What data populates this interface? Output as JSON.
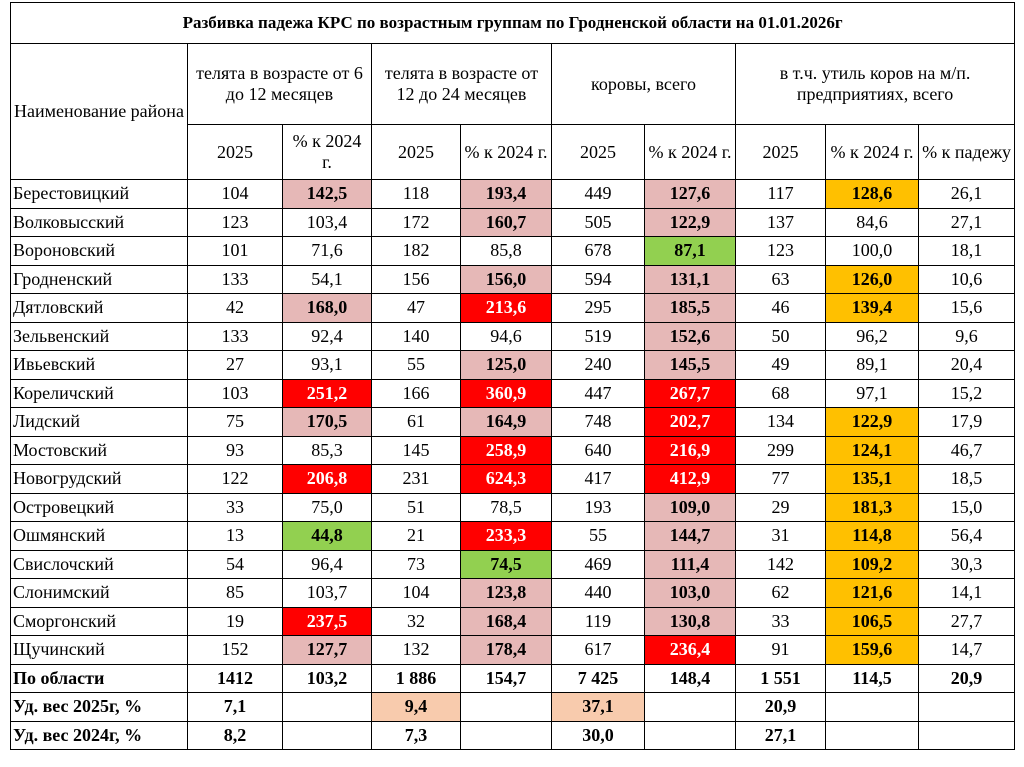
{
  "title": "Разбивка падежа КРС по возрастным группам по Гродненской области на 01.01.2026г",
  "header": {
    "name": "Наименование района",
    "groups": [
      "телята в возрасте от 6 до 12 месяцев",
      "телята в возрасте от 12 до 24 месяцев",
      "коровы, всего",
      "в т.ч. утиль коров на м/п. предприятиях, всего"
    ],
    "subcolumns": [
      "2025",
      "% к 2024 г.",
      "2025",
      "% к 2024 г.",
      "2025",
      "% к 2024 г.",
      "2025",
      "% к 2024 г.",
      "% к падежу"
    ]
  },
  "table": {
    "rows": [
      [
        "Берестовицкий",
        "104",
        "142,5",
        "118",
        "193,4",
        "449",
        "127,6",
        "117",
        "128,6",
        "26,1"
      ],
      [
        "Волковысский",
        "123",
        "103,4",
        "172",
        "160,7",
        "505",
        "122,9",
        "137",
        "84,6",
        "27,1"
      ],
      [
        "Вороновский",
        "101",
        "71,6",
        "182",
        "85,8",
        "678",
        "87,1",
        "123",
        "100,0",
        "18,1"
      ],
      [
        "Гродненский",
        "133",
        "54,1",
        "156",
        "156,0",
        "594",
        "131,1",
        "63",
        "126,0",
        "10,6"
      ],
      [
        "Дятловский",
        "42",
        "168,0",
        "47",
        "213,6",
        "295",
        "185,5",
        "46",
        "139,4",
        "15,6"
      ],
      [
        "Зельвенский",
        "133",
        "92,4",
        "140",
        "94,6",
        "519",
        "152,6",
        "50",
        "96,2",
        "9,6"
      ],
      [
        "Ивьевский",
        "27",
        "93,1",
        "55",
        "125,0",
        "240",
        "145,5",
        "49",
        "89,1",
        "20,4"
      ],
      [
        "Кореличский",
        "103",
        "251,2",
        "166",
        "360,9",
        "447",
        "267,7",
        "68",
        "97,1",
        "15,2"
      ],
      [
        "Лидский",
        "75",
        "170,5",
        "61",
        "164,9",
        "748",
        "202,7",
        "134",
        "122,9",
        "17,9"
      ],
      [
        "Мостовский",
        "93",
        "85,3",
        "145",
        "258,9",
        "640",
        "216,9",
        "299",
        "124,1",
        "46,7"
      ],
      [
        "Новогрудский",
        "122",
        "206,8",
        "231",
        "624,3",
        "417",
        "412,9",
        "77",
        "135,1",
        "18,5"
      ],
      [
        "Островецкий",
        "33",
        "75,0",
        "51",
        "78,5",
        "193",
        "109,0",
        "29",
        "181,3",
        "15,0"
      ],
      [
        "Ошмянский",
        "13",
        "44,8",
        "21",
        "233,3",
        "55",
        "144,7",
        "31",
        "114,8",
        "56,4"
      ],
      [
        "Свислочский",
        "54",
        "96,4",
        "73",
        "74,5",
        "469",
        "111,4",
        "142",
        "109,2",
        "30,3"
      ],
      [
        "Слонимский",
        "85",
        "103,7",
        "104",
        "123,8",
        "440",
        "103,0",
        "62",
        "121,6",
        "14,1"
      ],
      [
        "Сморгонский",
        "19",
        "237,5",
        "32",
        "168,4",
        "119",
        "130,8",
        "33",
        "106,5",
        "27,7"
      ],
      [
        "Щучинский",
        "152",
        "127,7",
        "132",
        "178,4",
        "617",
        "236,4",
        "91",
        "159,6",
        "14,7"
      ],
      [
        "По области",
        "1412",
        "103,2",
        "1 886",
        "154,7",
        "7 425",
        "148,4",
        "1 551",
        "114,5",
        "20,9"
      ],
      [
        "Уд. вес  2025г, %",
        "7,1",
        null,
        "9,4",
        null,
        "37,1",
        null,
        "20,9",
        null,
        null
      ],
      [
        "Уд. вес  2024г, %",
        "8,2",
        null,
        "7,3",
        null,
        "30,0",
        null,
        "27,1",
        null,
        null
      ]
    ],
    "fills": [
      [
        null,
        null,
        "#e6b8b7",
        null,
        "#e6b8b7",
        null,
        "#e6b8b7",
        null,
        "#ffc000",
        null
      ],
      [
        null,
        null,
        null,
        null,
        "#e6b8b7",
        null,
        "#e6b8b7",
        null,
        null,
        null
      ],
      [
        null,
        null,
        null,
        null,
        null,
        null,
        "#92d050",
        null,
        null,
        null
      ],
      [
        null,
        null,
        null,
        null,
        "#e6b8b7",
        null,
        "#e6b8b7",
        null,
        "#ffc000",
        null
      ],
      [
        null,
        null,
        "#e6b8b7",
        null,
        "#ff0000",
        null,
        "#e6b8b7",
        null,
        "#ffc000",
        null
      ],
      [
        null,
        null,
        null,
        null,
        null,
        null,
        "#e6b8b7",
        null,
        null,
        null
      ],
      [
        null,
        null,
        null,
        null,
        "#e6b8b7",
        null,
        "#e6b8b7",
        null,
        null,
        null
      ],
      [
        null,
        null,
        "#ff0000",
        null,
        "#ff0000",
        null,
        "#ff0000",
        null,
        null,
        null
      ],
      [
        null,
        null,
        "#e6b8b7",
        null,
        "#e6b8b7",
        null,
        "#ff0000",
        null,
        "#ffc000",
        null
      ],
      [
        null,
        null,
        null,
        null,
        "#ff0000",
        null,
        "#ff0000",
        null,
        "#ffc000",
        null
      ],
      [
        null,
        null,
        "#ff0000",
        null,
        "#ff0000",
        null,
        "#ff0000",
        null,
        "#ffc000",
        null
      ],
      [
        null,
        null,
        null,
        null,
        null,
        null,
        "#e6b8b7",
        null,
        "#ffc000",
        null
      ],
      [
        null,
        null,
        "#92d050",
        null,
        "#ff0000",
        null,
        "#e6b8b7",
        null,
        "#ffc000",
        null
      ],
      [
        null,
        null,
        null,
        null,
        "#92d050",
        null,
        "#e6b8b7",
        null,
        "#ffc000",
        null
      ],
      [
        null,
        null,
        null,
        null,
        "#e6b8b7",
        null,
        "#e6b8b7",
        null,
        "#ffc000",
        null
      ],
      [
        null,
        null,
        "#ff0000",
        null,
        "#e6b8b7",
        null,
        "#e6b8b7",
        null,
        "#ffc000",
        null
      ],
      [
        null,
        null,
        "#e6b8b7",
        null,
        "#e6b8b7",
        null,
        "#ff0000",
        null,
        "#ffc000",
        null
      ],
      [
        null,
        null,
        null,
        null,
        null,
        null,
        null,
        null,
        null,
        null
      ],
      [
        null,
        null,
        null,
        "#f8cbad",
        null,
        "#f8cbad",
        null,
        null,
        null,
        null
      ],
      [
        null,
        null,
        null,
        null,
        null,
        null,
        null,
        null,
        null,
        null
      ]
    ]
  }
}
